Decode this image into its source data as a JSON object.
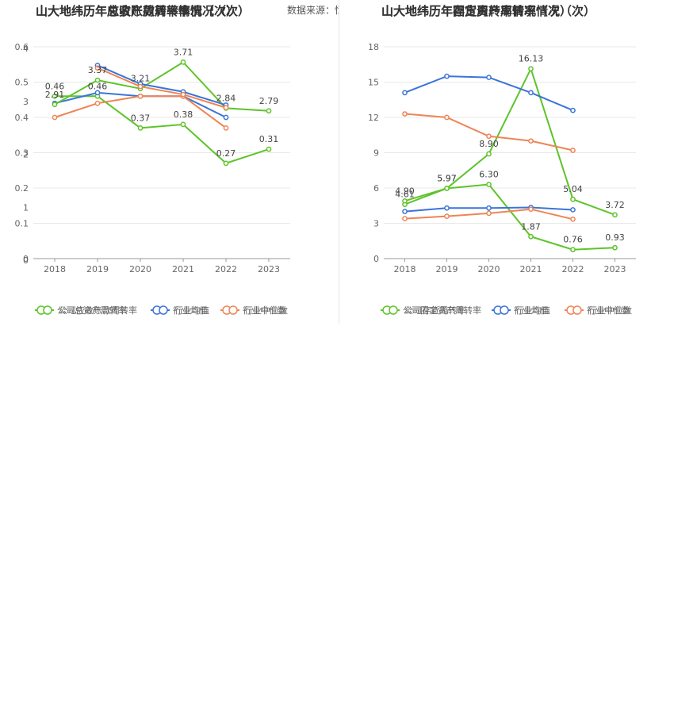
{
  "source_label": "数据来源：恒生聚源",
  "chart_data": [
    {
      "type": "line",
      "title": "山大地纬历年总资产周转率情况（次）",
      "overlay_title": "山大地纬历年应收账款周转率情况（次）",
      "x": [
        "2018",
        "2019",
        "2020",
        "2021",
        "2022",
        "2023"
      ],
      "ylim": [
        0,
        0.6
      ],
      "yticks": [
        "0",
        "0.1",
        "0.2",
        "0.3",
        "0.4",
        "0.5",
        "0.6"
      ],
      "overlay_yticks": [
        "0",
        "1",
        "2",
        "3",
        "4"
      ],
      "grid": true,
      "legend_position": "bottom",
      "series": [
        {
          "name": "公司总资产周转率",
          "color": "#5dc42a",
          "values": [
            0.46,
            0.46,
            0.37,
            0.38,
            0.27,
            0.31
          ]
        },
        {
          "name": "行业均值",
          "color": "#3a74d9",
          "values": [
            0.44,
            0.47,
            0.46,
            0.46,
            0.4,
            null
          ]
        },
        {
          "name": "行业中位数",
          "color": "#ee8455",
          "values": [
            0.4,
            0.44,
            0.46,
            0.46,
            0.37,
            null
          ]
        },
        {
          "name": "公司应收账款周转率",
          "color": "#5dc42a",
          "values": [
            2.91,
            3.37,
            3.21,
            3.71,
            2.84,
            2.79
          ]
        },
        {
          "name": "行业均值",
          "color": "#3a74d9",
          "values": [
            null,
            3.65,
            3.3,
            3.15,
            2.9,
            null
          ]
        },
        {
          "name": "行业中位数",
          "color": "#ee8455",
          "values": [
            null,
            3.6,
            3.25,
            3.1,
            2.85,
            null
          ]
        }
      ],
      "labels": [
        {
          "i": 0,
          "text": "0.46"
        },
        {
          "i": 1,
          "text": "0.46"
        },
        {
          "i": 2,
          "text": "0.37"
        },
        {
          "i": 3,
          "text": "0.38"
        },
        {
          "i": 4,
          "text": "0.27"
        },
        {
          "i": 5,
          "text": "0.31"
        },
        {
          "i": 0,
          "text": "2.91"
        },
        {
          "i": 1,
          "text": "3.37"
        },
        {
          "i": 2,
          "text": "3.21"
        },
        {
          "i": 3,
          "text": "3.71"
        },
        {
          "i": 4,
          "text": "2.84"
        },
        {
          "i": 5,
          "text": "2.79"
        }
      ]
    },
    {
      "type": "line",
      "title": "山大地纬历年固定资产周转率情况（次）",
      "overlay_title": "山大地纬历年存货周转率情况（次）",
      "x": [
        "2018",
        "2019",
        "2020",
        "2021",
        "2022",
        "2023"
      ],
      "ylim": [
        0,
        18
      ],
      "yticks": [
        "0",
        "3",
        "6",
        "9",
        "12",
        "15",
        "18"
      ],
      "grid": true,
      "legend_position": "bottom",
      "series": [
        {
          "name": "公司固定资产周转率",
          "color": "#5dc42a",
          "values": [
            4.61,
            5.97,
            6.3,
            1.87,
            0.76,
            0.93
          ]
        },
        {
          "name": "行业均值",
          "color": "#3a74d9",
          "values": [
            4.0,
            4.3,
            4.3,
            4.35,
            4.15,
            null
          ]
        },
        {
          "name": "行业中位数",
          "color": "#ee8455",
          "values": [
            3.4,
            3.6,
            3.85,
            4.2,
            3.35,
            null
          ]
        },
        {
          "name": "公司存货周转率",
          "color": "#5dc42a",
          "values": [
            4.9,
            5.97,
            8.9,
            16.13,
            5.04,
            3.72
          ]
        },
        {
          "name": "行业均值",
          "color": "#3a74d9",
          "values": [
            14.1,
            15.5,
            15.4,
            14.1,
            12.6,
            null
          ]
        },
        {
          "name": "行业中位数",
          "color": "#ee8455",
          "values": [
            12.3,
            12.0,
            10.4,
            10.0,
            9.2,
            null
          ]
        }
      ],
      "labels": [
        {
          "i": 0,
          "text": "4.61"
        },
        {
          "i": 1,
          "text": "5.97"
        },
        {
          "i": 2,
          "text": "6.30"
        },
        {
          "i": 3,
          "text": "1.87"
        },
        {
          "i": 4,
          "text": "0.76"
        },
        {
          "i": 5,
          "text": "0.93"
        },
        {
          "i": 0,
          "text": "4.90"
        },
        {
          "i": 1,
          "text": "5.97"
        },
        {
          "i": 2,
          "text": "8.90"
        },
        {
          "i": 3,
          "text": "16.13"
        },
        {
          "i": 4,
          "text": "5.04"
        },
        {
          "i": 5,
          "text": "3.72"
        }
      ]
    }
  ]
}
